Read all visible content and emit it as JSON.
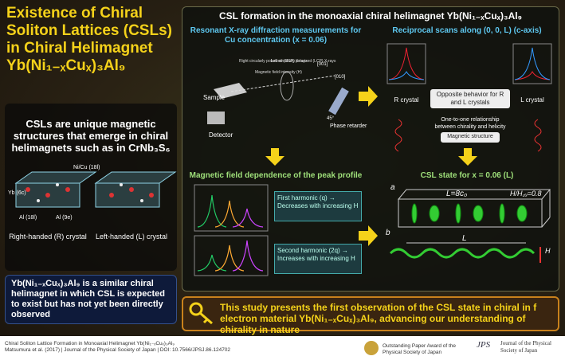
{
  "header": {
    "title": "Existence of Chiral Soliton Lattices (CSLs) in Chiral Helimagnet Yb(Ni₁₋ₓCuₓ)₃Al₉"
  },
  "intro": {
    "text": "CSLs are unique magnetic structures that emerge in chiral helimagnets such as in CrNb₃S₆",
    "atoms": [
      "Ni/Cu (18l)",
      "Yb (6c)",
      "Al (18l)",
      "Al (9e)"
    ],
    "crystals": [
      "Right-handed (R) crystal",
      "Left-handed (L) crystal"
    ],
    "note": "Yb(Ni₁₋ₓCuₓ)₃Al₉ is a similar chiral helimagnet in which CSL is expected to exist but has not yet been directly observed"
  },
  "main": {
    "title": "CSL formation in the monoaxial chiral helimagnet Yb(Ni₁₋ₓCuₓ)₃Al₉",
    "setup": {
      "title": "Resonant X-ray diffraction measurements for Cu concentration (x = 0.06)",
      "labels": [
        "Sample",
        "Detector",
        "Phase retarder",
        "Magnetic field intensity (H)",
        "Right circularly polarized (RCP) X-rays",
        "Left circularly polarized (LCP) X-rays",
        "[001]",
        "[010]",
        "45°"
      ]
    },
    "scans": {
      "title": "Reciprocal scans along (0, 0, L) (c-axis)",
      "left": "R crystal",
      "right": "L crystal",
      "notes": [
        "Opposite behavior for R and L crystals",
        "One-to-one relationship between chirality and helicity",
        "Magnetic structure"
      ]
    },
    "field": {
      "title": "Magnetic field dependence of the peak profile",
      "first": "First harmonic (q) → Decreases with increasing H",
      "second": "Second harmonic (2q) → Increases with increasing H"
    },
    "state": {
      "title": "CSL state for x = 0.06 (L)",
      "period": "L=8c₀",
      "ratio": "H/H꜀ᵤ=0.8",
      "length": "L",
      "field": "H",
      "a": "a",
      "b": "b"
    }
  },
  "banner": {
    "text": "This study presents the first observation of the CSL state in chiral in f electron material Yb(Ni₁₋ₓCuₓ)₃Al₉, advancing our understanding of chirality in nature"
  },
  "footer": {
    "citation": "Chiral Soliton Lattice Formation in Monoaxial Helimagnet Yb(Ni₁₋ₓCuₓ)₃Al₉",
    "source": "Matsumura et al. (2017) | Journal of the Physical Society of Japan | DOI: 10.7566/JPSJ.86.124702",
    "award": "Outstanding Paper Award of the Physical Society of Japan",
    "logo": "JPS",
    "journal": "Journal of the Physical Society of Japan"
  }
}
